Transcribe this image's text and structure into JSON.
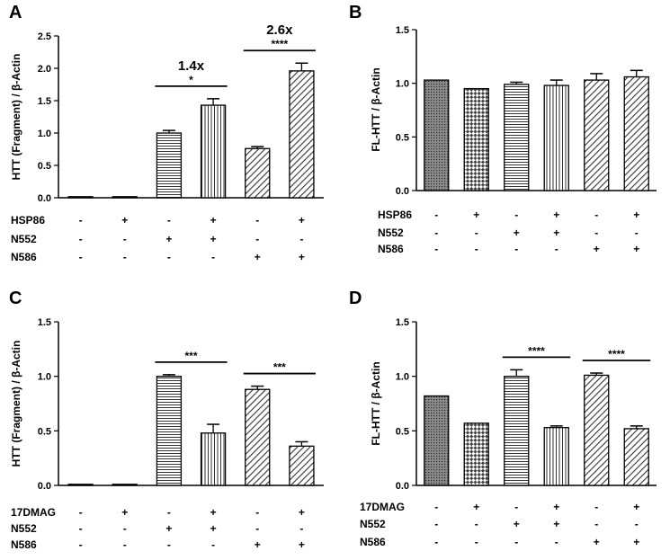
{
  "panels": [
    {
      "letter": "A",
      "ylabel": "HTT (Fragment) / β-Actin"
    },
    {
      "letter": "B",
      "ylabel": "FL-HTT / β-Actin"
    },
    {
      "letter": "C",
      "ylabel": "HTT (Fragment) / β-Actin"
    },
    {
      "letter": "D",
      "ylabel": "FL-HTT / β-Actin"
    }
  ],
  "chart_data": [
    {
      "type": "bar",
      "panel": "A",
      "ylabel": "HTT (Fragment) / β-Actin",
      "ylim": [
        0,
        2.5
      ],
      "yticks": [
        "0.0",
        "0.5",
        "1.0",
        "1.5",
        "2.0",
        "2.5"
      ],
      "values": [
        0.01,
        0.01,
        1.0,
        1.43,
        0.76,
        1.96
      ],
      "errors": [
        0,
        0,
        0.04,
        0.1,
        0.03,
        0.12
      ],
      "patterns": [
        "dots",
        "check",
        "hlines",
        "vlines",
        "diag",
        "diag"
      ],
      "conditions": [
        {
          "name": "HSP86",
          "signs": [
            "-",
            "+",
            "-",
            "+",
            "-",
            "+"
          ]
        },
        {
          "name": "N552",
          "signs": [
            "-",
            "-",
            "+",
            "+",
            "-",
            "-"
          ]
        },
        {
          "name": "N586",
          "signs": [
            "-",
            "-",
            "-",
            "-",
            "+",
            "+"
          ]
        }
      ],
      "annotations": [
        {
          "from": 2,
          "to": 3,
          "stars": "*",
          "fold": "1.4x"
        },
        {
          "from": 4,
          "to": 5,
          "stars": "****",
          "fold": "2.6x"
        }
      ]
    },
    {
      "type": "bar",
      "panel": "B",
      "ylabel": "FL-HTT / β-Actin",
      "ylim": [
        0,
        1.5
      ],
      "yticks": [
        "0.0",
        "0.5",
        "1.0",
        "1.5"
      ],
      "values": [
        1.03,
        0.95,
        0.99,
        0.98,
        1.03,
        1.06
      ],
      "errors": [
        0,
        0,
        0.02,
        0.05,
        0.06,
        0.06
      ],
      "patterns": [
        "dots",
        "check",
        "hlines",
        "vlines",
        "diag",
        "diag"
      ],
      "conditions": [
        {
          "name": "HSP86",
          "signs": [
            "-",
            "+",
            "-",
            "+",
            "-",
            "+"
          ]
        },
        {
          "name": "N552",
          "signs": [
            "-",
            "-",
            "+",
            "+",
            "-",
            "-"
          ]
        },
        {
          "name": "N586",
          "signs": [
            "-",
            "-",
            "-",
            "-",
            "+",
            "+"
          ]
        }
      ],
      "annotations": []
    },
    {
      "type": "bar",
      "panel": "C",
      "ylabel": "HTT (Fragment) / β-Actin",
      "ylim": [
        0,
        1.5
      ],
      "yticks": [
        "0.0",
        "0.5",
        "1.0",
        "1.5"
      ],
      "values": [
        0.01,
        0.01,
        1.0,
        0.48,
        0.88,
        0.36
      ],
      "errors": [
        0,
        0,
        0.015,
        0.08,
        0.03,
        0.04
      ],
      "patterns": [
        "dots",
        "check",
        "hlines",
        "vlines",
        "diag",
        "diag"
      ],
      "conditions": [
        {
          "name": "17DMAG",
          "signs": [
            "-",
            "+",
            "-",
            "+",
            "-",
            "+"
          ]
        },
        {
          "name": "N552",
          "signs": [
            "-",
            "-",
            "+",
            "+",
            "-",
            "-"
          ]
        },
        {
          "name": "N586",
          "signs": [
            "-",
            "-",
            "-",
            "-",
            "+",
            "+"
          ]
        }
      ],
      "annotations": [
        {
          "from": 2,
          "to": 3,
          "stars": "***",
          "fold": ""
        },
        {
          "from": 4,
          "to": 5,
          "stars": "***",
          "fold": ""
        }
      ]
    },
    {
      "type": "bar",
      "panel": "D",
      "ylabel": "FL-HTT / β-Actin",
      "ylim": [
        0,
        1.5
      ],
      "yticks": [
        "0.0",
        "0.5",
        "1.0",
        "1.5"
      ],
      "values": [
        0.82,
        0.57,
        1.0,
        0.53,
        1.01,
        0.52
      ],
      "errors": [
        0,
        0,
        0.06,
        0.015,
        0.02,
        0.025
      ],
      "patterns": [
        "dots",
        "check",
        "hlines",
        "vlines",
        "diag",
        "diag"
      ],
      "conditions": [
        {
          "name": "17DMAG",
          "signs": [
            "-",
            "+",
            "-",
            "+",
            "-",
            "+"
          ]
        },
        {
          "name": "N552",
          "signs": [
            "-",
            "-",
            "+",
            "+",
            "-",
            "-"
          ]
        },
        {
          "name": "N586",
          "signs": [
            "-",
            "-",
            "-",
            "-",
            "+",
            "+"
          ]
        }
      ],
      "annotations": [
        {
          "from": 2,
          "to": 3,
          "stars": "****",
          "fold": ""
        },
        {
          "from": 4,
          "to": 5,
          "stars": "****",
          "fold": ""
        }
      ]
    }
  ]
}
